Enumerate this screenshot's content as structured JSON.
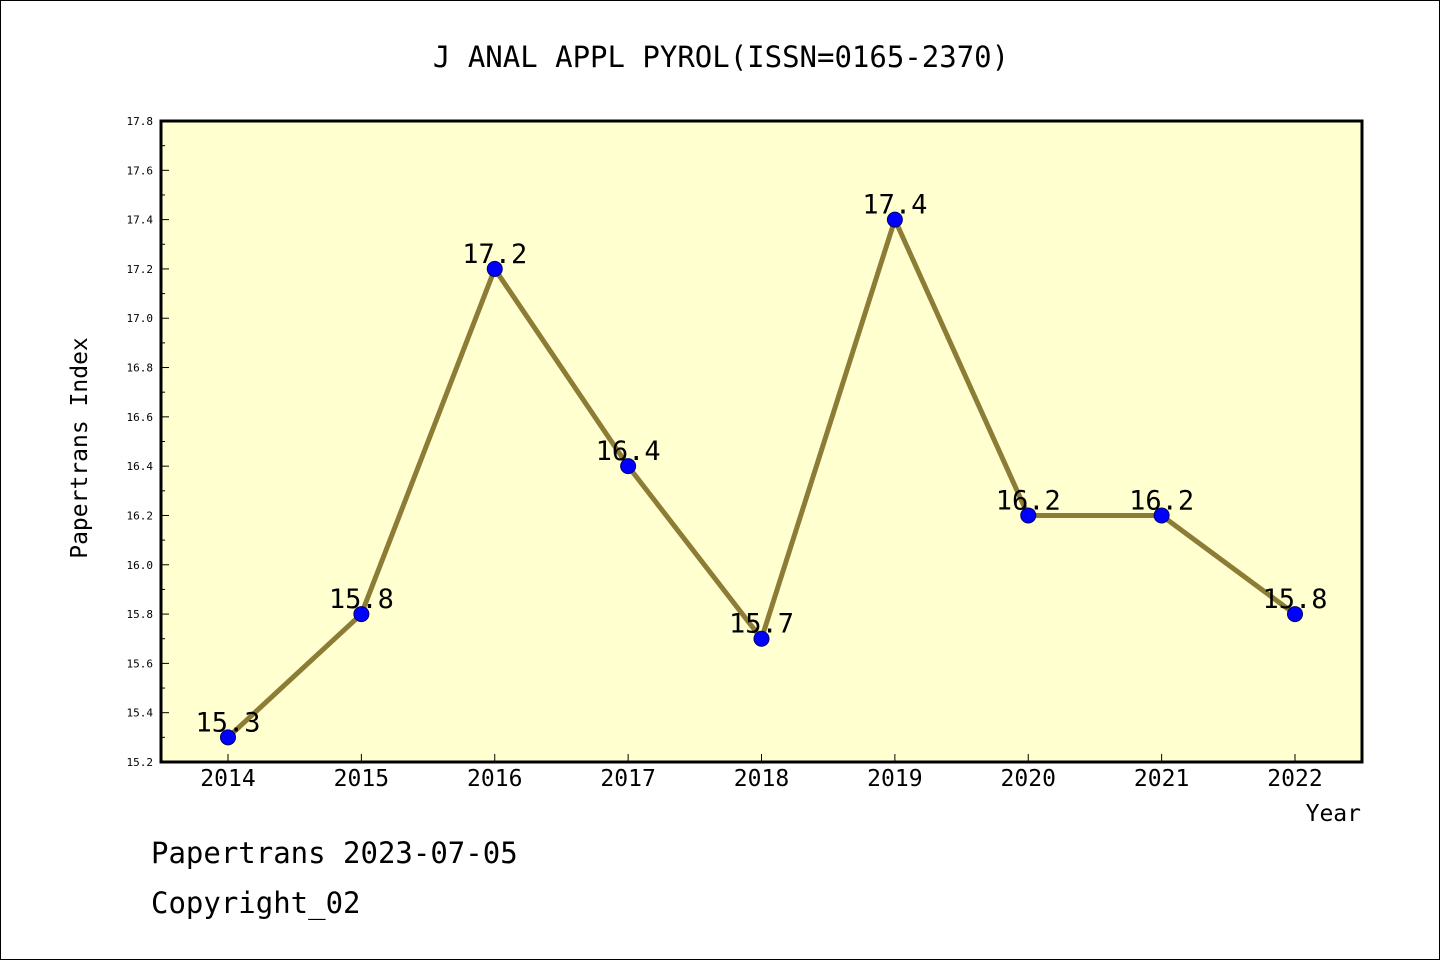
{
  "chart_data": {
    "type": "line",
    "title": "J ANAL APPL PYROL(ISSN=0165-2370)",
    "xlabel": "Year",
    "ylabel": "Papertrans Index",
    "categories": [
      "2014",
      "2015",
      "2016",
      "2017",
      "2018",
      "2019",
      "2020",
      "2021",
      "2022"
    ],
    "values": [
      15.3,
      15.8,
      17.2,
      16.4,
      15.7,
      17.4,
      16.2,
      16.2,
      15.8
    ],
    "data_labels": [
      "15.3",
      "15.8",
      "17.2",
      "16.4",
      "15.7",
      "17.4",
      "16.2",
      "16.2",
      "15.8"
    ],
    "ylim": [
      15.2,
      17.8
    ],
    "yticks": [
      "15.2",
      "15.4",
      "15.6",
      "15.8",
      "16.0",
      "16.2",
      "16.4",
      "16.6",
      "16.8",
      "17.0",
      "17.2",
      "17.4",
      "17.6",
      "17.8"
    ],
    "grid": false,
    "legend": false,
    "colors": {
      "plot_background": "#ffffd0",
      "line": "#8c7c36",
      "marker": "#0000ff"
    }
  },
  "footer": {
    "source": "Papertrans 2023-07-05",
    "copyright": "Copyright_02"
  }
}
